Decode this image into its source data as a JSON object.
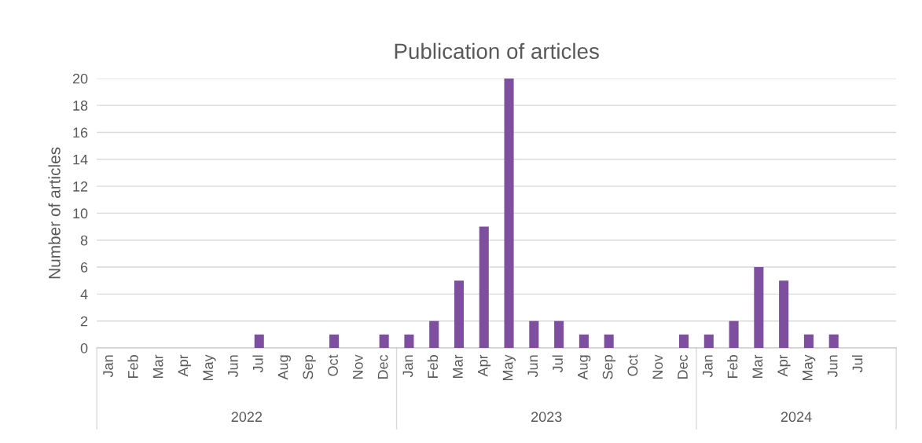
{
  "chart_data": {
    "type": "bar",
    "title": "Publication of articles",
    "ylabel": "Number of articles",
    "categories": [
      "Jan",
      "Feb",
      "Mar",
      "Apr",
      "May",
      "Jun",
      "Jul",
      "Aug",
      "Sep",
      "Oct",
      "Nov",
      "Dec",
      "Jan",
      "Feb",
      "Mar",
      "Apr",
      "May",
      "Jun",
      "Jul",
      "Aug",
      "Sep",
      "Oct",
      "Nov",
      "Dec",
      "Jan",
      "Feb",
      "Mar",
      "Apr",
      "May",
      "Jun",
      "Jul",
      null
    ],
    "values": [
      0,
      0,
      0,
      0,
      0,
      0,
      1,
      0,
      0,
      1,
      0,
      1,
      1,
      2,
      5,
      9,
      20,
      2,
      2,
      1,
      1,
      0,
      0,
      1,
      1,
      2,
      6,
      5,
      1,
      1,
      0,
      null
    ],
    "color": "#7f4f9f",
    "annotations": [
      "2022",
      "2023",
      "2024"
    ],
    "ylim": [
      0,
      20
    ],
    "yticks": [
      0,
      2,
      4,
      6,
      8,
      10,
      12,
      14,
      16,
      18,
      20
    ],
    "grid": "y",
    "legend": false
  }
}
